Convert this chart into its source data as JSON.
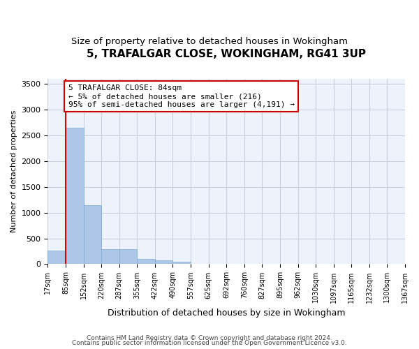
{
  "title": "5, TRAFALGAR CLOSE, WOKINGHAM, RG41 3UP",
  "subtitle": "Size of property relative to detached houses in Wokingham",
  "xlabel": "Distribution of detached houses by size in Wokingham",
  "ylabel": "Number of detached properties",
  "bin_labels": [
    "17sqm",
    "85sqm",
    "152sqm",
    "220sqm",
    "287sqm",
    "355sqm",
    "422sqm",
    "490sqm",
    "557sqm",
    "625sqm",
    "692sqm",
    "760sqm",
    "827sqm",
    "895sqm",
    "962sqm",
    "1030sqm",
    "1097sqm",
    "1165sqm",
    "1232sqm",
    "1300sqm",
    "1367sqm"
  ],
  "bar_heights": [
    265,
    2640,
    1140,
    285,
    285,
    95,
    70,
    40,
    0,
    0,
    0,
    0,
    0,
    0,
    0,
    0,
    0,
    0,
    0,
    0
  ],
  "bar_color": "#aec6e8",
  "bar_edge_color": "#7aadd4",
  "property_line_x": 1,
  "annotation_text": "5 TRAFALGAR CLOSE: 84sqm\n← 5% of detached houses are smaller (216)\n95% of semi-detached houses are larger (4,191) →",
  "ylim": [
    0,
    3600
  ],
  "yticks": [
    0,
    500,
    1000,
    1500,
    2000,
    2500,
    3000,
    3500
  ],
  "footnote1": "Contains HM Land Registry data © Crown copyright and database right 2024.",
  "footnote2": "Contains public sector information licensed under the Open Government Licence v3.0.",
  "background_color": "#eef2fb",
  "grid_color": "#c8d0e0",
  "title_fontsize": 11,
  "subtitle_fontsize": 9.5,
  "xlabel_fontsize": 9,
  "ylabel_fontsize": 8,
  "annotation_box_color": "#cc0000",
  "annotation_fontsize": 8,
  "red_line_color": "#dd0000",
  "footnote_fontsize": 6.5
}
